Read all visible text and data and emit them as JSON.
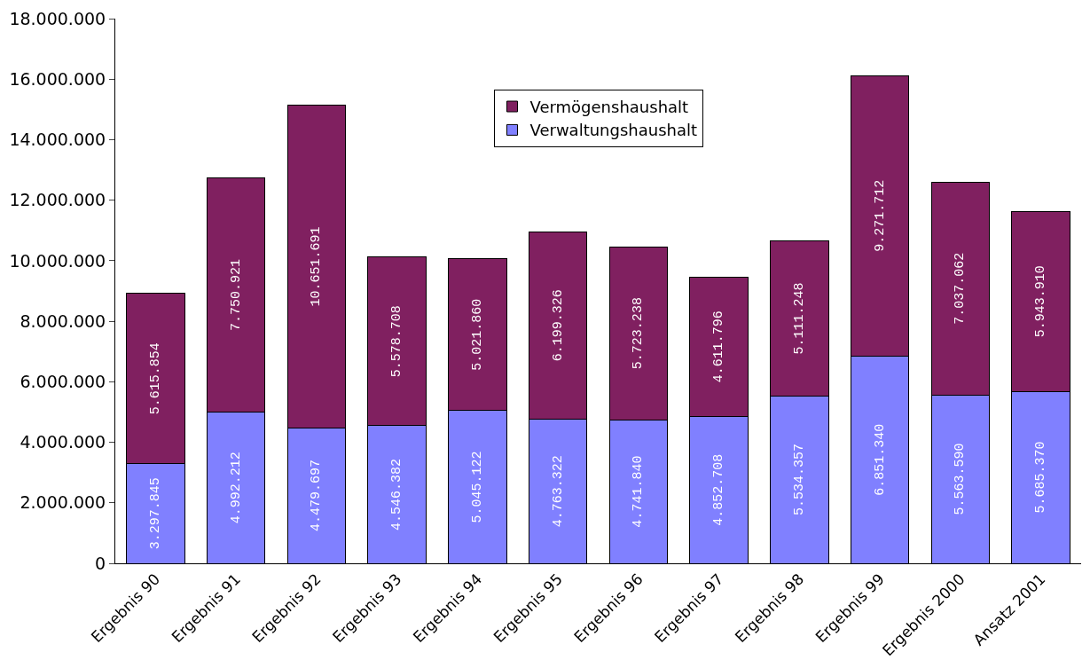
{
  "chart_data": {
    "type": "bar",
    "stacked": true,
    "categories": [
      "Ergebnis 90",
      "Ergebnis 91",
      "Ergebnis 92",
      "Ergebnis 93",
      "Ergebnis 94",
      "Ergebnis 95",
      "Ergebnis 96",
      "Ergebnis 97",
      "Ergebnis 98",
      "Ergebnis 99",
      "Ergebnis 2000",
      "Ansatz 2001"
    ],
    "series": [
      {
        "name": "Verwaltungshaushalt",
        "color": "#8080ff",
        "values": [
          3297845,
          4992212,
          4479697,
          4546382,
          5045122,
          4763322,
          4741840,
          4852708,
          5534357,
          6851340,
          5563590,
          5685370
        ],
        "value_labels": [
          "3.297.845",
          "4.992.212",
          "4.479.697",
          "4.546.382",
          "5.045.122",
          "4.763.322",
          "4.741.840",
          "4.852.708",
          "5.534.357",
          "6.851.340",
          "5.563.590",
          "5.685.370"
        ]
      },
      {
        "name": "Vermögenshaushalt",
        "color": "#802060",
        "values": [
          5615854,
          7750921,
          10651691,
          5578708,
          5021860,
          6199326,
          5723238,
          4611796,
          5111248,
          9271712,
          7037062,
          5943910
        ],
        "value_labels": [
          "5.615.854",
          "7.750.921",
          "10.651.691",
          "5.578.708",
          "5.021.860",
          "6.199.326",
          "5.723.238",
          "4.611.796",
          "5.111.248",
          "9.271.712",
          "7.037.062",
          "5.943.910"
        ]
      }
    ],
    "ylim": [
      0,
      18000000
    ],
    "yticks": [
      {
        "value": 0,
        "label": "0"
      },
      {
        "value": 2000000,
        "label": "2.000.000"
      },
      {
        "value": 4000000,
        "label": "4.000.000"
      },
      {
        "value": 6000000,
        "label": "6.000.000"
      },
      {
        "value": 8000000,
        "label": "8.000.000"
      },
      {
        "value": 10000000,
        "label": "10.000.000"
      },
      {
        "value": 12000000,
        "label": "12.000.000"
      },
      {
        "value": 14000000,
        "label": "14.000.000"
      },
      {
        "value": 16000000,
        "label": "16.000.000"
      },
      {
        "value": 18000000,
        "label": "18.000.000"
      }
    ],
    "legend": "top",
    "grid": false
  }
}
